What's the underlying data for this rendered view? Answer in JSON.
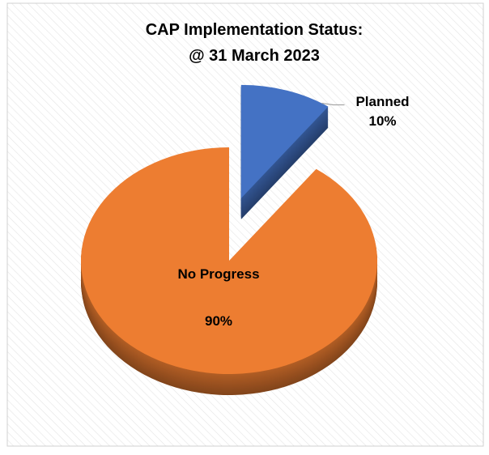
{
  "chart_data": {
    "type": "pie",
    "title": "CAP Implementation Status:",
    "subtitle": "@ 31 March 2023",
    "categories": [
      "Planned",
      "No Progress"
    ],
    "values": [
      10,
      90
    ],
    "value_labels": [
      "10%",
      "90%"
    ],
    "colors": [
      "#4472c4",
      "#ed7d31"
    ],
    "explode": [
      true,
      false
    ],
    "style": "3d"
  }
}
